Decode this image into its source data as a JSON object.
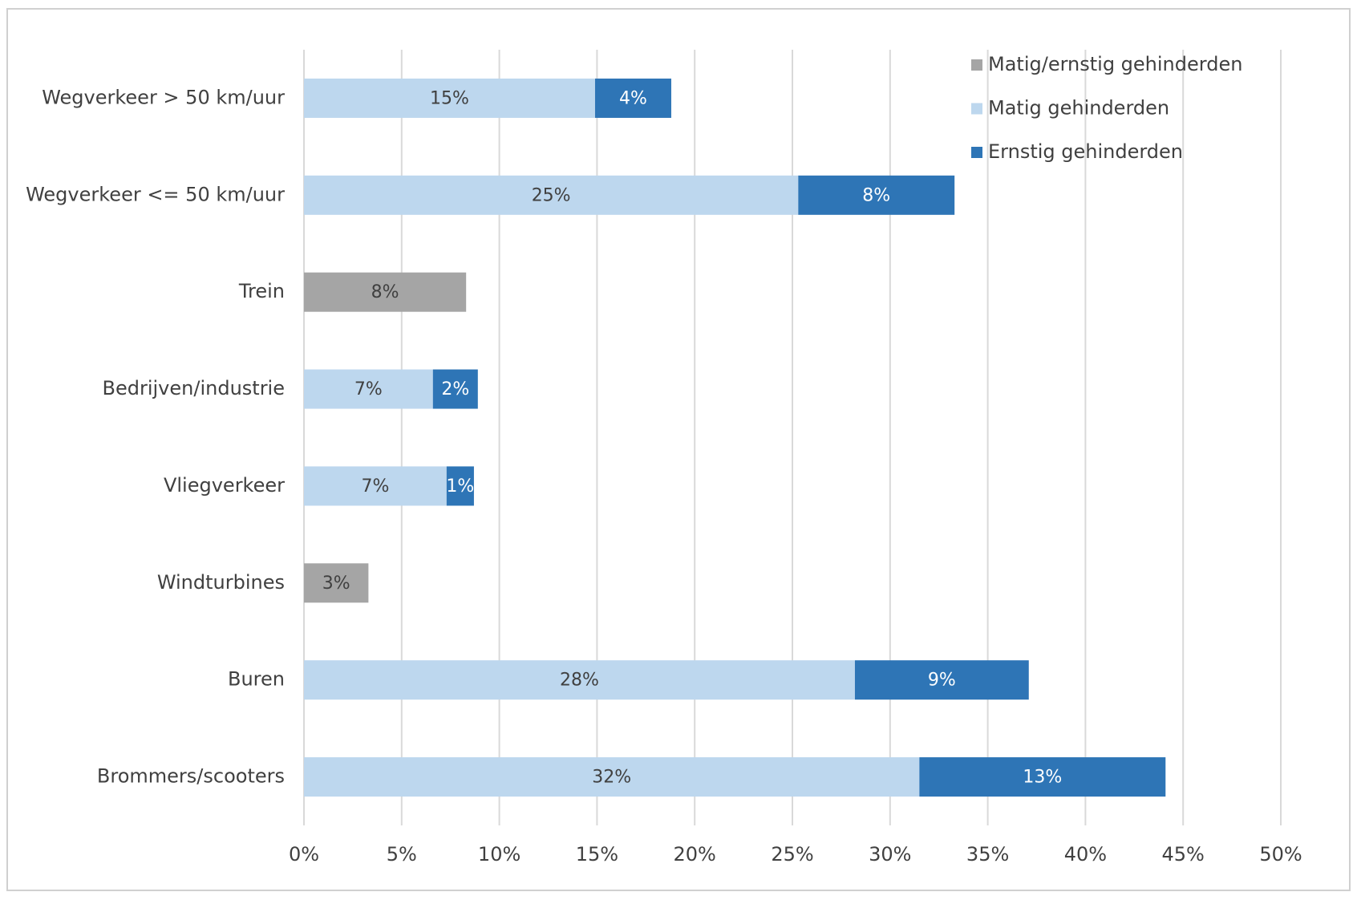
{
  "chart_data": {
    "type": "stacked-bar-horizontal",
    "categories": [
      "Wegverkeer > 50 km/uur",
      "Wegverkeer <= 50 km/uur",
      "Trein",
      "Bedrijven/industrie",
      "Vliegverkeer",
      "Windturbines",
      "Buren",
      "Brommers/scooters"
    ],
    "series": [
      {
        "name": "Matig/ernstig gehinderden",
        "color": "#a5a5a5",
        "label_color": "#404040",
        "values": [
          null,
          null,
          8.3,
          null,
          null,
          3.3,
          null,
          null
        ],
        "value_labels": [
          null,
          null,
          "8%",
          null,
          null,
          "3%",
          null,
          null
        ]
      },
      {
        "name": "Matig gehinderden",
        "color": "#bdd7ee",
        "label_color": "#404040",
        "values": [
          14.9,
          25.3,
          null,
          6.6,
          7.3,
          null,
          28.2,
          31.5
        ],
        "value_labels": [
          "15%",
          "25%",
          null,
          "7%",
          "7%",
          null,
          "28%",
          "32%"
        ]
      },
      {
        "name": "Ernstig gehinderden",
        "color": "#2e75b6",
        "label_color": "#ffffff",
        "values": [
          3.9,
          8.0,
          null,
          2.3,
          1.4,
          null,
          8.9,
          12.6
        ],
        "value_labels": [
          "4%",
          "8%",
          null,
          "2%",
          "1%",
          null,
          "9%",
          "13%"
        ]
      }
    ],
    "xlim": [
      0,
      50
    ],
    "xticks": [
      {
        "value": 0,
        "label": "0%"
      },
      {
        "value": 5,
        "label": "5%"
      },
      {
        "value": 10,
        "label": "10%"
      },
      {
        "value": 15,
        "label": "15%"
      },
      {
        "value": 20,
        "label": "20%"
      },
      {
        "value": 25,
        "label": "25%"
      },
      {
        "value": 30,
        "label": "30%"
      },
      {
        "value": 35,
        "label": "35%"
      },
      {
        "value": 40,
        "label": "40%"
      },
      {
        "value": 45,
        "label": "45%"
      },
      {
        "value": 50,
        "label": "50%"
      }
    ],
    "grid": true,
    "legend": "top-right"
  }
}
